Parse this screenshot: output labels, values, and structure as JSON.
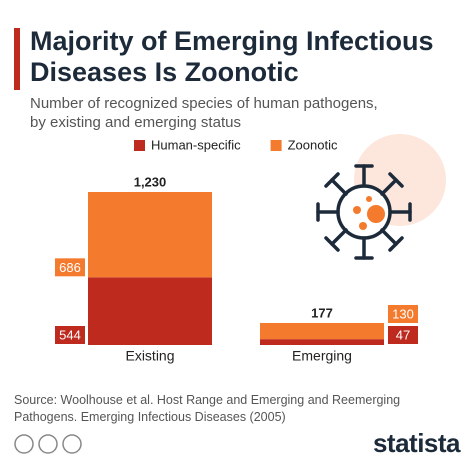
{
  "chart_data": {
    "type": "stacked_bar",
    "title": "Majority of Emerging Infectious Diseases Is Zoonotic",
    "subtitle": "Number of recognized species of human pathogens, by existing and emerging status",
    "categories": [
      "Existing",
      "Emerging"
    ],
    "series": [
      {
        "name": "Human-specific",
        "color": "#bf2a1f",
        "values": [
          544,
          47
        ]
      },
      {
        "name": "Zoonotic",
        "color": "#f47a2e",
        "values": [
          686,
          130
        ]
      }
    ],
    "totals": [
      1230,
      177
    ],
    "total_labels": [
      "1,230",
      "177"
    ],
    "source": "Source: Woolhouse et al. Host Range and Emerging and Reemerging Pathogens. Emerging Infectious Diseases (2005)",
    "brand": "statista"
  }
}
